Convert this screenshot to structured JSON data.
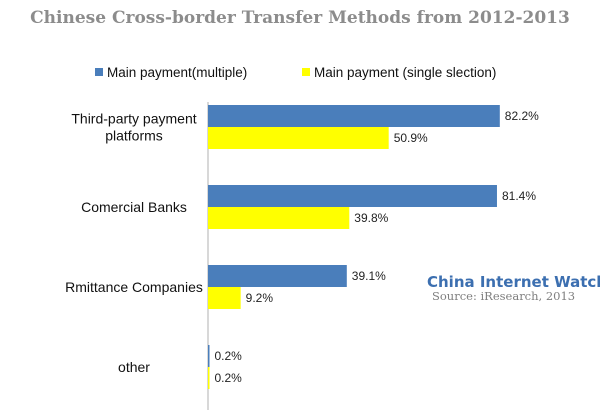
{
  "chart_data": {
    "type": "bar",
    "orientation": "horizontal",
    "title": "Chinese Cross-border Transfer Methods from 2012-2013",
    "categories": [
      [
        "Third-party payment",
        "platforms"
      ],
      [
        "Comercial Banks"
      ],
      [
        "Rmittance Companies"
      ],
      [
        "other"
      ]
    ],
    "series": [
      {
        "name": "Main payment(multiple)",
        "color": "#4a7ebb",
        "values": [
          82.2,
          81.4,
          39.1,
          0.2
        ]
      },
      {
        "name": "Main payment (single slection)",
        "color": "#ffff00",
        "values": [
          50.9,
          39.8,
          9.2,
          0.2
        ]
      }
    ],
    "value_suffix": "%",
    "xlim": [
      0,
      100
    ],
    "grid": false,
    "legend_position": "top"
  },
  "watermark": {
    "brand": "China Internet Watch",
    "source": "Source: iResearch,  2013"
  }
}
